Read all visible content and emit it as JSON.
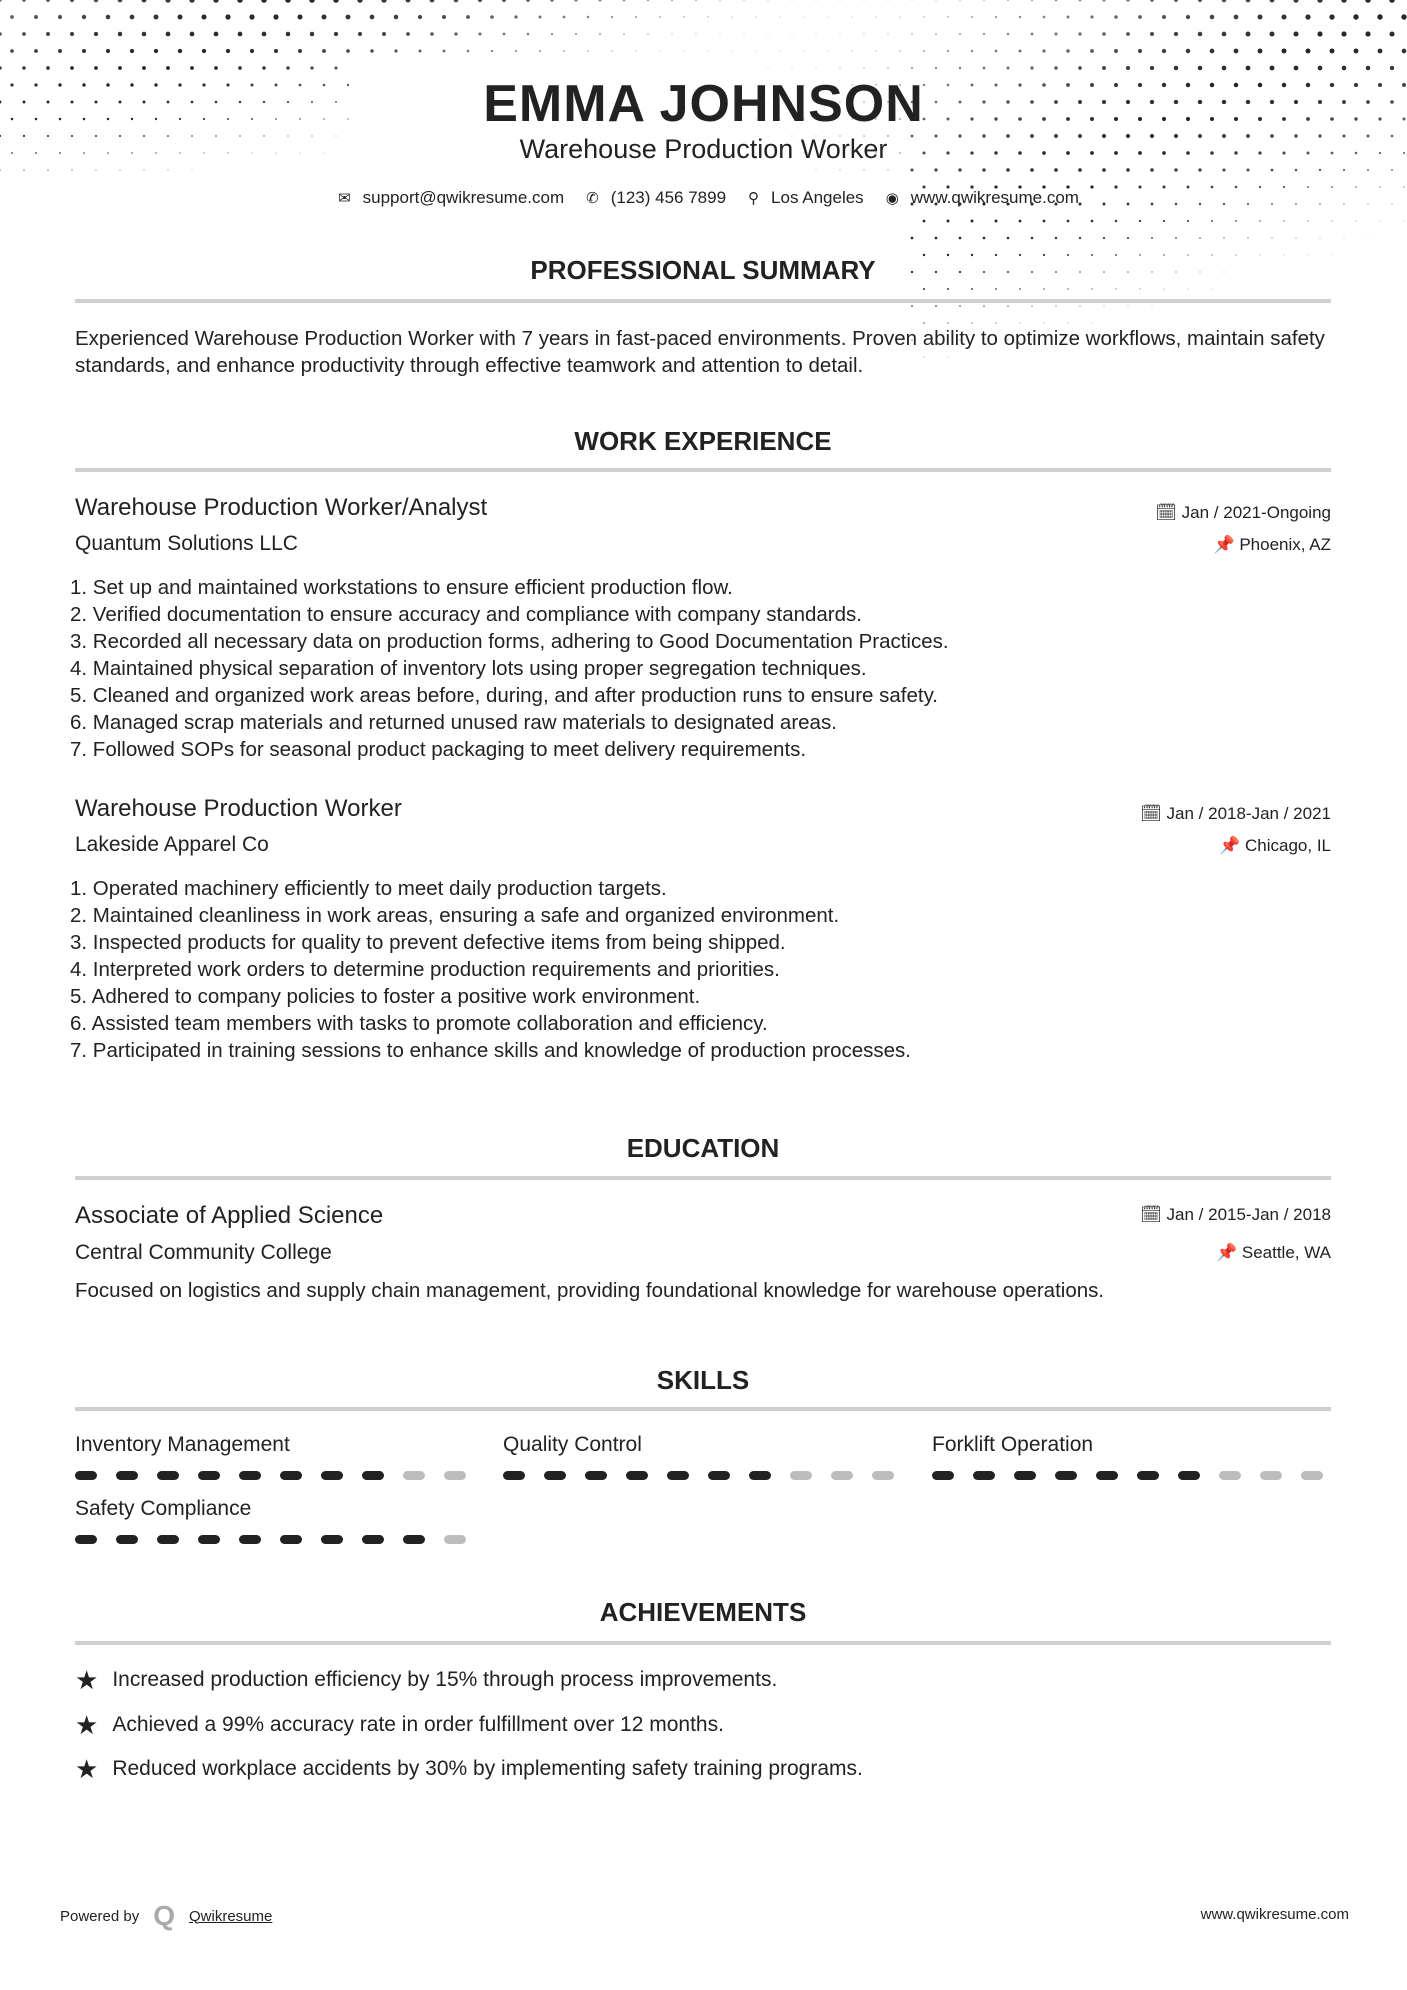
{
  "header": {
    "name": "EMMA JOHNSON",
    "title": "Warehouse Production Worker",
    "contact": [
      {
        "icon": "envelope-icon",
        "glyph": "✉",
        "text": "support@qwikresume.com"
      },
      {
        "icon": "phone-icon",
        "glyph": "✆",
        "text": "(123) 456 7899"
      },
      {
        "icon": "map-pin-icon",
        "glyph": "⚲",
        "text": "Los Angeles"
      },
      {
        "icon": "globe-icon",
        "glyph": "◉",
        "text": "www.qwikresume.com"
      }
    ]
  },
  "summary": {
    "heading": "PROFESSIONAL SUMMARY",
    "text": "Experienced Warehouse Production Worker with 7 years in fast-paced environments. Proven ability to optimize workflows, maintain safety standards, and enhance productivity through effective teamwork and attention to detail."
  },
  "experience": {
    "heading": "WORK EXPERIENCE",
    "jobs": [
      {
        "title": "Warehouse Production Worker/Analyst",
        "company": "Quantum Solutions LLC",
        "date": "Jan / 2021-Ongoing",
        "location": "Phoenix, AZ",
        "bullets": [
          "1. Set up and maintained workstations to ensure efficient production flow.",
          "2. Verified documentation to ensure accuracy and compliance with company standards.",
          "3. Recorded all necessary data on production forms, adhering to Good Documentation Practices.",
          "4. Maintained physical separation of inventory lots using proper segregation techniques.",
          "5. Cleaned and organized work areas before, during, and after production runs to ensure safety.",
          "6. Managed scrap materials and returned unused raw materials to designated areas.",
          "7. Followed SOPs for seasonal product packaging to meet delivery requirements."
        ]
      },
      {
        "title": "Warehouse Production Worker",
        "company": "Lakeside Apparel Co",
        "date": "Jan / 2018-Jan / 2021",
        "location": "Chicago, IL",
        "bullets": [
          "1. Operated machinery efficiently to meet daily production targets.",
          "2. Maintained cleanliness in work areas, ensuring a safe and organized environment.",
          "3. Inspected products for quality to prevent defective items from being shipped.",
          "4. Interpreted work orders to determine production requirements and priorities.",
          "5. Adhered to company policies to foster a positive work environment.",
          "6. Assisted team members with tasks to promote collaboration and efficiency.",
          "7. Participated in training sessions to enhance skills and knowledge of production processes."
        ]
      }
    ]
  },
  "education": {
    "heading": "EDUCATION",
    "degree": "Associate of Applied Science",
    "school": "Central Community College",
    "date": "Jan / 2015-Jan / 2018",
    "location": "Seattle, WA",
    "description": "Focused on logistics and supply chain management, providing foundational knowledge for warehouse operations."
  },
  "skills": {
    "heading": "SKILLS",
    "items": [
      {
        "name": "Inventory Management",
        "level": 8,
        "max": 10
      },
      {
        "name": "Quality Control",
        "level": 7,
        "max": 10
      },
      {
        "name": "Forklift Operation",
        "level": 7,
        "max": 10
      },
      {
        "name": "Safety Compliance",
        "level": 9,
        "max": 10
      }
    ]
  },
  "achievements": {
    "heading": "ACHIEVEMENTS",
    "items": [
      "Increased production efficiency by 15% through process improvements.",
      "Achieved a 99% accuracy rate in order fulfillment over 12 months.",
      "Reduced workplace accidents by 30% by implementing safety training programs."
    ]
  },
  "footer": {
    "powered_by": "Powered by",
    "brand": "Qwikresume",
    "url": "www.qwikresume.com"
  },
  "colors": {
    "text": "#222222",
    "rule": "#cfcfcf",
    "skill_off": "#bdbdbd"
  }
}
